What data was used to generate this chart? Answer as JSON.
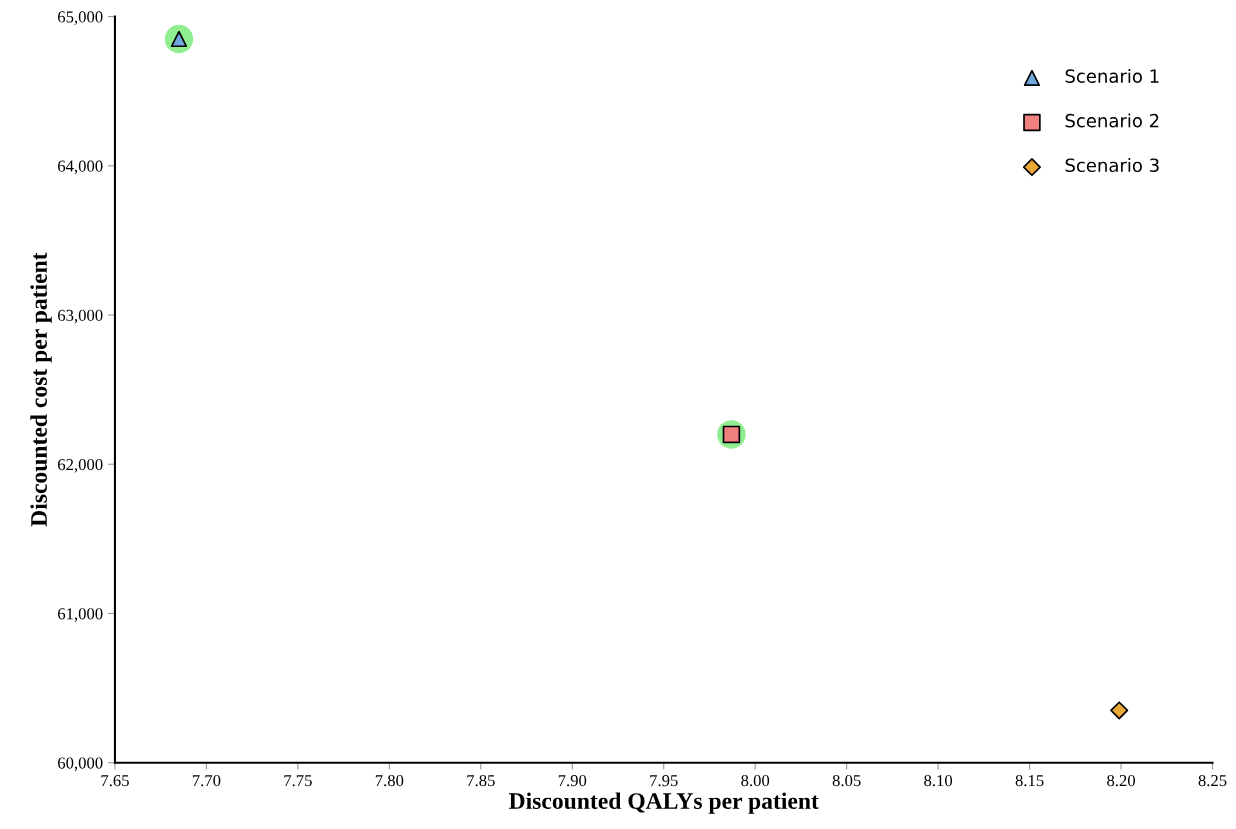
{
  "chart_data": {
    "type": "scatter",
    "xlabel": "Discounted QALYs per patient",
    "ylabel": "Discounted cost per patient",
    "xlim": [
      7.65,
      8.25
    ],
    "xticks": [
      {
        "value": 7.65,
        "label": "7.65"
      },
      {
        "value": 7.7,
        "label": "7.70"
      },
      {
        "value": 7.75,
        "label": "7.75"
      },
      {
        "value": 7.8,
        "label": "7.80"
      },
      {
        "value": 7.85,
        "label": "7.85"
      },
      {
        "value": 7.9,
        "label": "7.90"
      },
      {
        "value": 7.95,
        "label": "7.95"
      },
      {
        "value": 8.0,
        "label": "8.00"
      },
      {
        "value": 8.05,
        "label": "8.05"
      },
      {
        "value": 8.1,
        "label": "8.10"
      },
      {
        "value": 8.15,
        "label": "8.15"
      },
      {
        "value": 8.2,
        "label": "8.20"
      },
      {
        "value": 8.25,
        "label": "8.25"
      }
    ],
    "ylim": [
      60000,
      65000
    ],
    "yticks": [
      {
        "value": 60000,
        "label": "60,000"
      },
      {
        "value": 61000,
        "label": "61,000"
      },
      {
        "value": 62000,
        "label": "62,000"
      },
      {
        "value": 63000,
        "label": "63,000"
      },
      {
        "value": 64000,
        "label": "64,000"
      },
      {
        "value": 65000,
        "label": "65,000"
      }
    ],
    "grid": false,
    "legend": "top right",
    "series": [
      {
        "color": "#90ee90",
        "marker": "circle",
        "x": [
          7.685,
          7.987
        ],
        "values": [
          64850,
          62200
        ]
      },
      {
        "name": "Scenario 1",
        "color": "#6fa8dc",
        "marker": "triangle",
        "x": [
          7.685
        ],
        "values": [
          64850
        ]
      },
      {
        "name": "Scenario 2",
        "color": "#f08080",
        "marker": "square",
        "x": [
          7.987
        ],
        "values": [
          62200
        ]
      },
      {
        "name": "Scenario 3",
        "color": "#e8a838",
        "marker": "diamond",
        "x": [
          8.199
        ],
        "values": [
          60350
        ]
      }
    ]
  }
}
